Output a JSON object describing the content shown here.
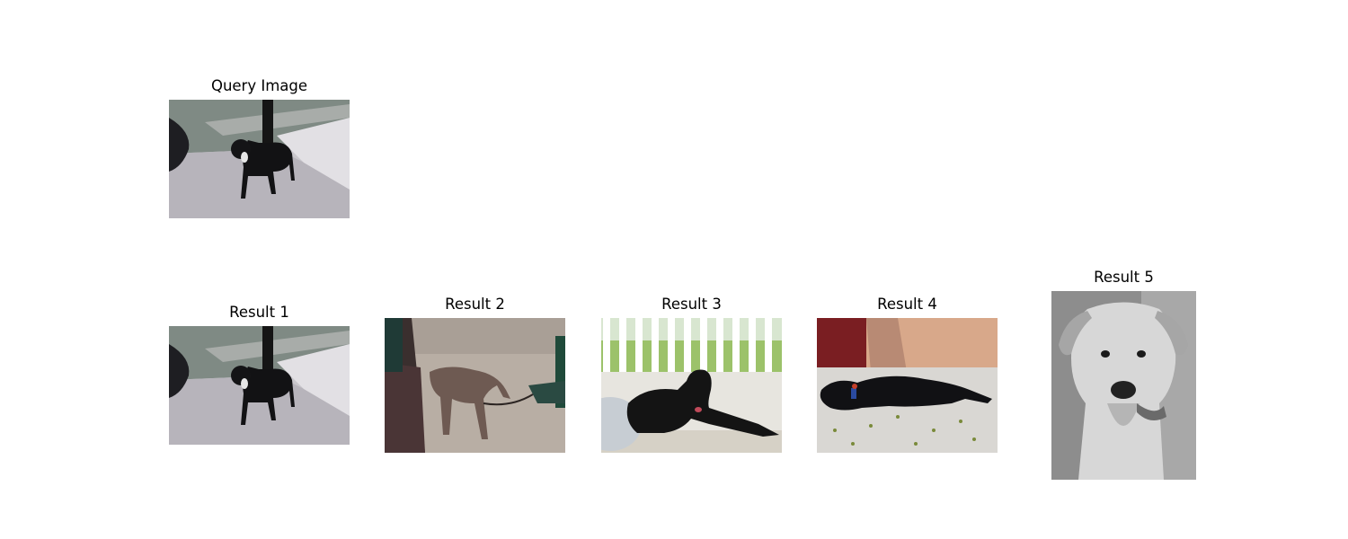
{
  "query": {
    "title": "Query Image",
    "image": "black-dog-on-leash-sidewalk"
  },
  "results": [
    {
      "title": "Result 1",
      "image": "black-dog-on-leash-sidewalk"
    },
    {
      "title": "Result 2",
      "image": "brown-dog-on-leash-pavement"
    },
    {
      "title": "Result 3",
      "image": "black-dog-lying-by-white-fence"
    },
    {
      "title": "Result 4",
      "image": "black-dog-lying-on-leaves"
    },
    {
      "title": "Result 5",
      "image": "white-labrador-grayscale-portrait"
    }
  ]
}
